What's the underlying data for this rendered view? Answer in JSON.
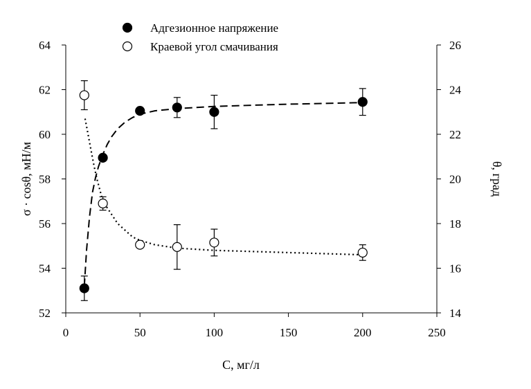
{
  "chart_data": {
    "type": "scatter",
    "title": "",
    "xlabel": "C, мг/л",
    "ylabel": "σ · cosθ, мН/м",
    "y2label": "θ, град",
    "xlim": [
      0,
      250
    ],
    "ylim": [
      52,
      64
    ],
    "y2lim": [
      14,
      26
    ],
    "x_ticks": [
      0,
      50,
      100,
      150,
      200,
      250
    ],
    "y_ticks": [
      52,
      54,
      56,
      58,
      60,
      62,
      64
    ],
    "y2_ticks": [
      14,
      16,
      18,
      20,
      22,
      24,
      26
    ],
    "grid": false,
    "legend_position": "top-center",
    "series": [
      {
        "name": "Адгезионное напряжение",
        "axis": "left",
        "marker": "filled-circle",
        "x": [
          12.5,
          25,
          50,
          75,
          100,
          200
        ],
        "y": [
          53.1,
          58.95,
          61.05,
          61.2,
          61.0,
          61.45
        ],
        "err": [
          0.55,
          null,
          null,
          0.45,
          0.75,
          0.6
        ]
      },
      {
        "name": "Краевой угол смачивания",
        "axis": "right",
        "marker": "open-circle",
        "x": [
          12.5,
          25,
          50,
          75,
          100,
          200
        ],
        "y": [
          23.75,
          18.9,
          17.05,
          16.95,
          17.15,
          16.7
        ],
        "err": [
          0.65,
          0.3,
          null,
          1.0,
          0.6,
          0.35
        ]
      }
    ],
    "fit_curves": [
      {
        "series": "Адгезионное напряжение",
        "style": "dashed",
        "x": [
          12.5,
          14,
          16,
          18,
          20,
          22,
          25,
          28,
          31,
          35,
          40,
          45,
          50,
          60,
          75,
          100,
          150,
          200
        ],
        "y": [
          53.2,
          54.8,
          56.3,
          57.4,
          58.05,
          58.55,
          59.1,
          59.55,
          59.9,
          60.25,
          60.55,
          60.75,
          60.9,
          61.05,
          61.15,
          61.25,
          61.35,
          61.42
        ]
      },
      {
        "series": "Краевой угол смачивания",
        "style": "dotted",
        "x": [
          13,
          15,
          17,
          19,
          21,
          23,
          25,
          35,
          45,
          50,
          60,
          75,
          100,
          150,
          200
        ],
        "y": [
          22.7,
          22.0,
          21.3,
          20.6,
          20.0,
          19.5,
          19.0,
          18.0,
          17.4,
          17.25,
          17.05,
          16.9,
          16.8,
          16.7,
          16.6
        ]
      }
    ]
  }
}
